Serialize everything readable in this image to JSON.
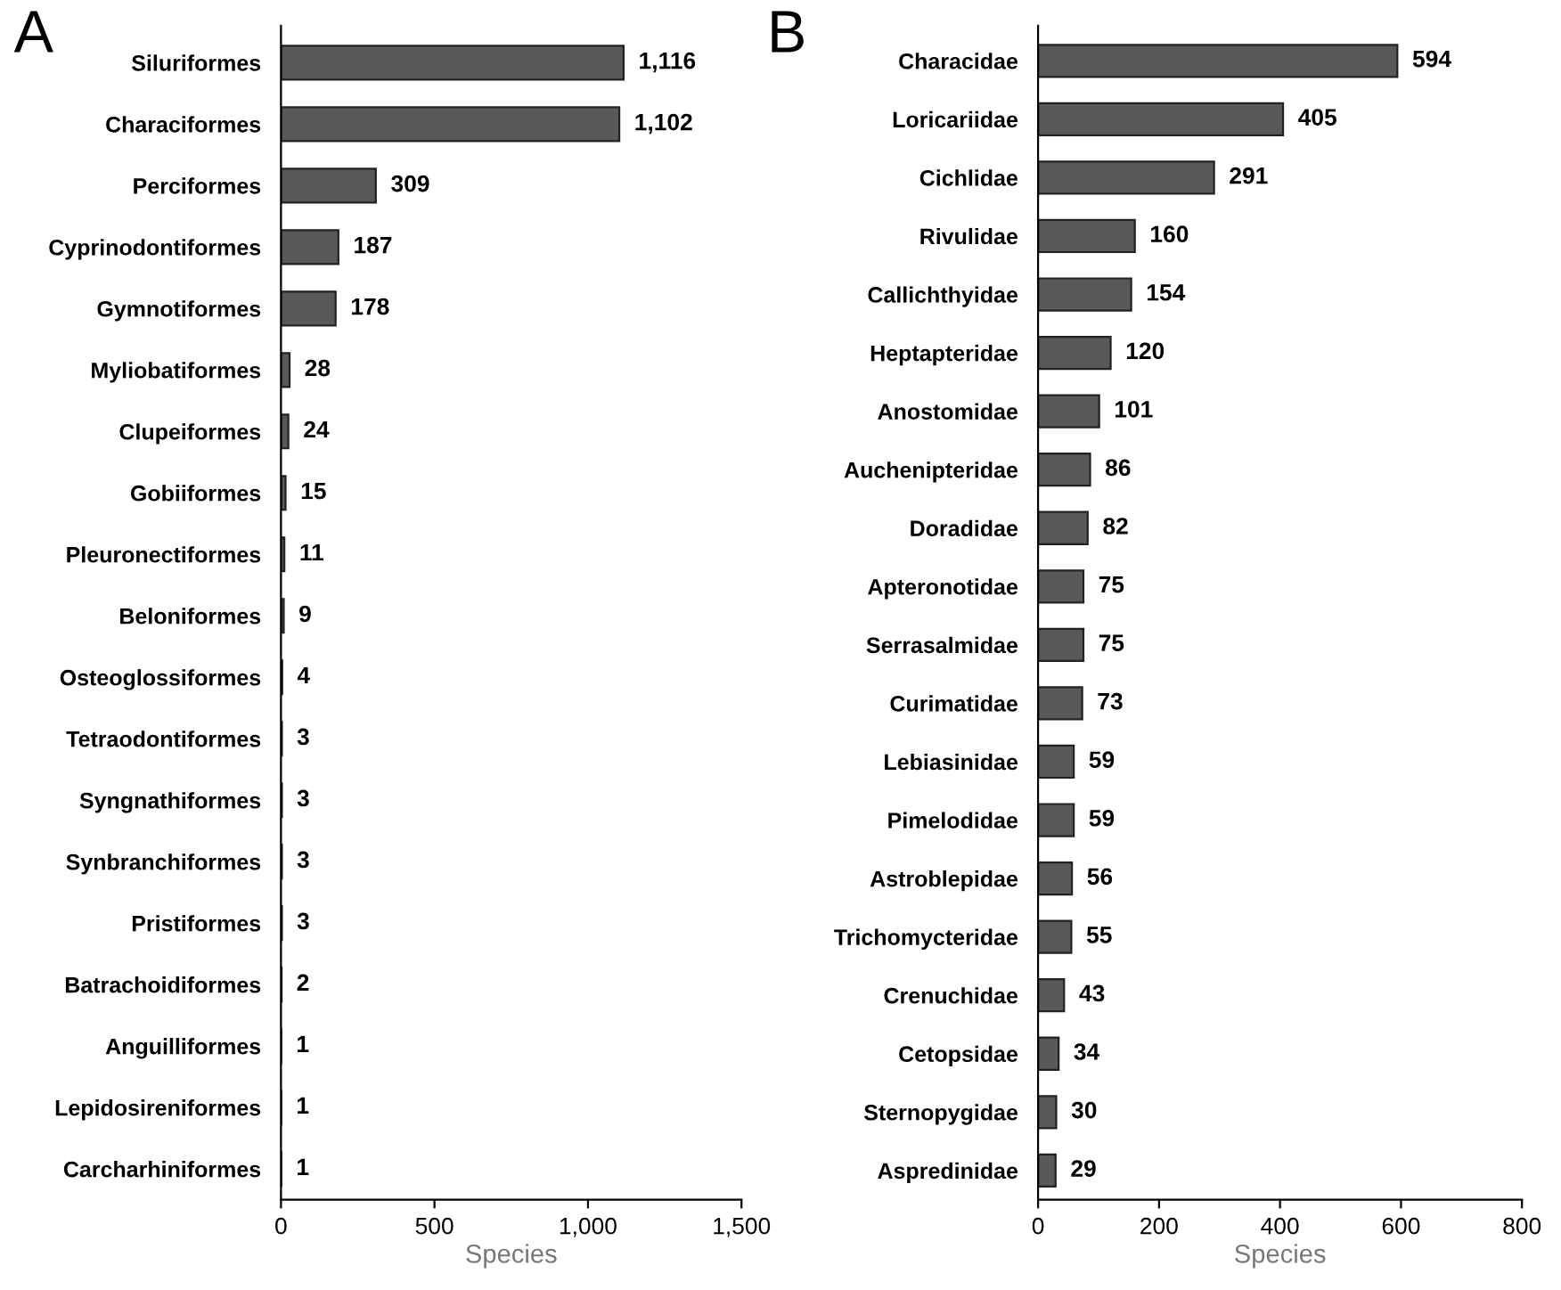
{
  "chart_data": [
    {
      "type": "bar",
      "title": "A",
      "orientation": "horizontal",
      "xlabel": "Species",
      "categories": [
        "Siluriformes",
        "Characiformes",
        "Perciformes",
        "Cyprinodontiformes",
        "Gymnotiformes",
        "Myliobatiformes",
        "Clupeiformes",
        "Gobiiformes",
        "Pleuronectiformes",
        "Beloniformes",
        "Osteoglossiformes",
        "Tetraodontiformes",
        "Syngnathiformes",
        "Synbranchiformes",
        "Pristiformes",
        "Batrachoidiformes",
        "Anguilliformes",
        "Lepidosireniformes",
        "Carcharhiniformes"
      ],
      "values": [
        1116,
        1102,
        309,
        187,
        178,
        28,
        24,
        15,
        11,
        9,
        4,
        3,
        3,
        3,
        3,
        2,
        1,
        1,
        1
      ],
      "value_labels": [
        "1,116",
        "1,102",
        "309",
        "187",
        "178",
        "28",
        "24",
        "15",
        "11",
        "9",
        "4",
        "3",
        "3",
        "3",
        "3",
        "2",
        "1",
        "1",
        "1"
      ],
      "color": "#595959",
      "xlim": [
        0,
        1500
      ],
      "xticks": [
        0,
        500,
        {
          "value": 1000,
          "label": "1,000"
        },
        {
          "value": 1500,
          "label": "1,500"
        }
      ],
      "grid": false,
      "legend": false
    },
    {
      "type": "bar",
      "title": "B",
      "orientation": "horizontal",
      "xlabel": "Species",
      "categories": [
        "Characidae",
        "Loricariidae",
        "Cichlidae",
        "Rivulidae",
        "Callichthyidae",
        "Heptapteridae",
        "Anostomidae",
        "Auchenipteridae",
        "Doradidae",
        "Apteronotidae",
        "Serrasalmidae",
        "Curimatidae",
        "Lebiasinidae",
        "Pimelodidae",
        "Astroblepidae",
        "Trichomycteridae",
        "Crenuchidae",
        "Cetopsidae",
        "Sternopygidae",
        "Aspredinidae"
      ],
      "values": [
        594,
        405,
        291,
        160,
        154,
        120,
        101,
        86,
        82,
        75,
        75,
        73,
        59,
        59,
        56,
        55,
        43,
        34,
        30,
        29
      ],
      "data_labels": true,
      "color": "#595959",
      "xlim": [
        0,
        800
      ],
      "xticks": [
        0,
        200,
        400,
        600,
        800
      ],
      "grid": false,
      "legend": false
    }
  ]
}
